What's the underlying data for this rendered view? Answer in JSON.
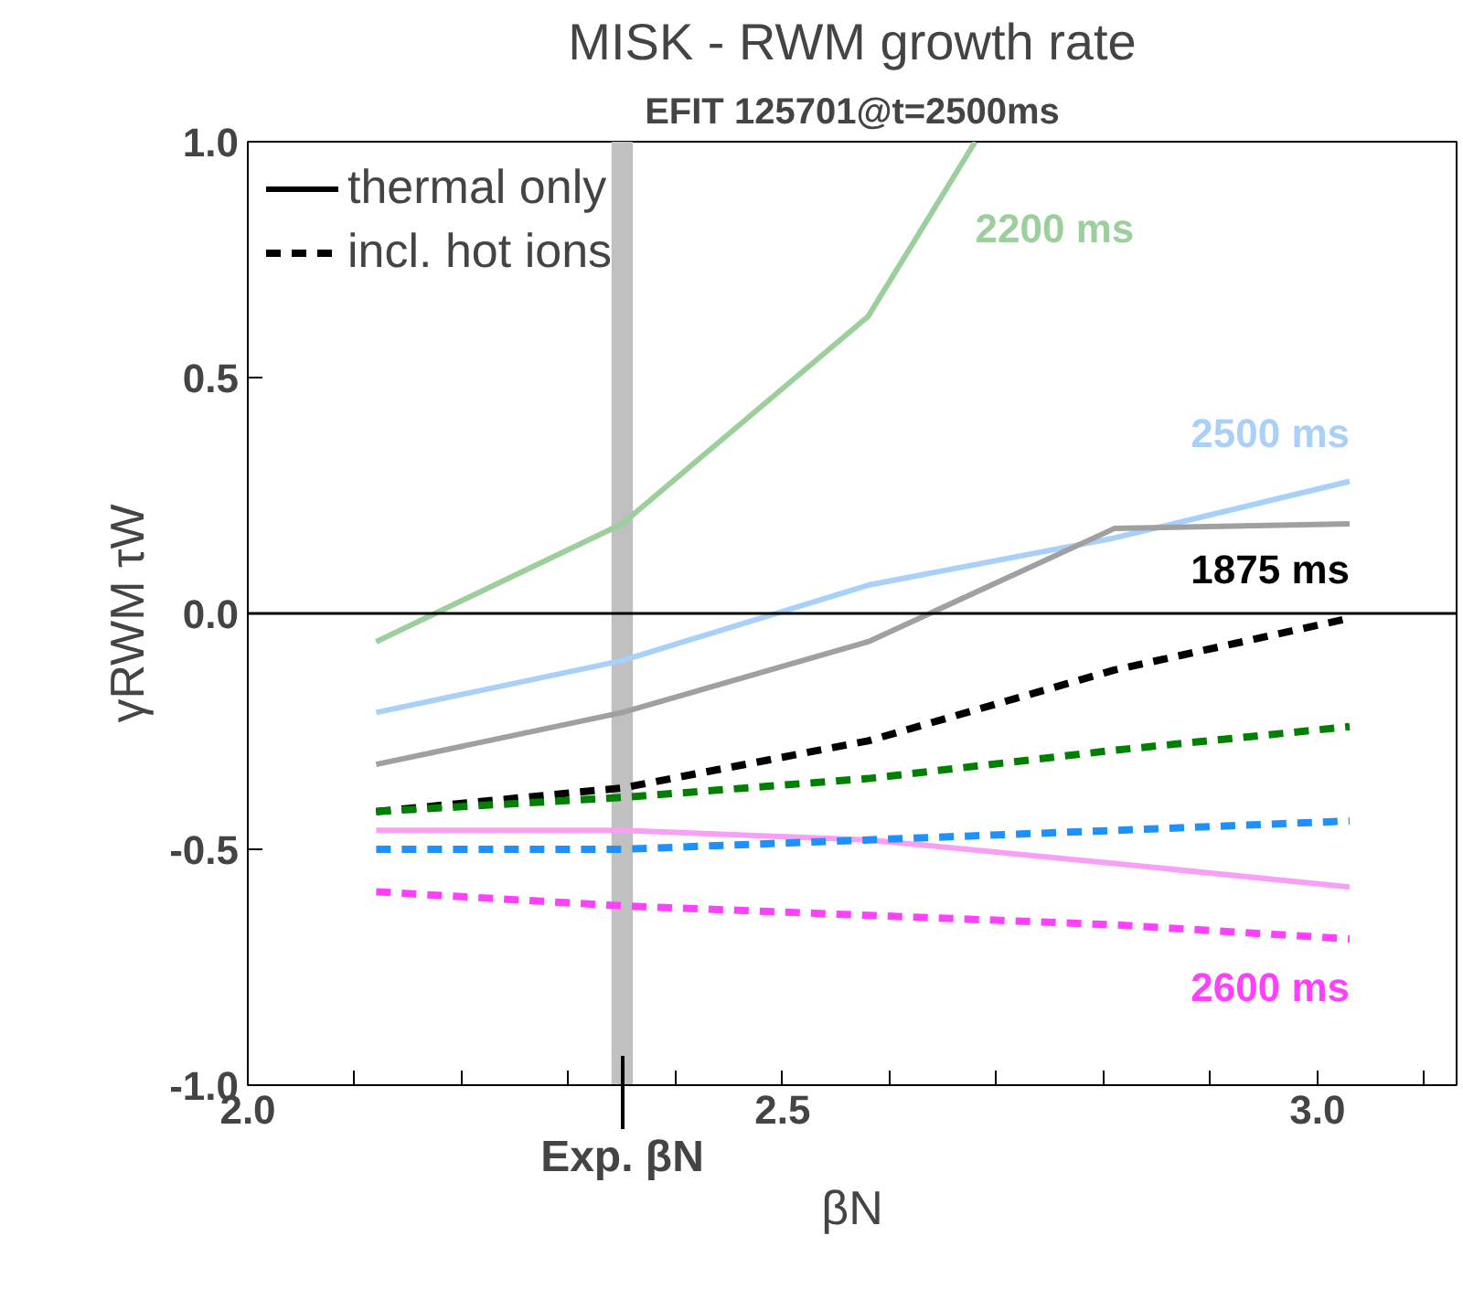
{
  "chart_data": {
    "type": "line",
    "title": "MISK - RWM growth rate",
    "subtitle": "EFIT 125701@t=2500ms",
    "xlabel": "βN",
    "ylabel": "γRWM τW",
    "x": [
      2.12,
      2.35,
      2.58,
      2.81,
      3.03
    ],
    "xlim": [
      2.0,
      3.13
    ],
    "ylim": [
      -1.0,
      1.0
    ],
    "xticks": [
      {
        "value": 2.0,
        "label": "2.0"
      },
      {
        "value": 2.1,
        "label": null
      },
      {
        "value": 2.2,
        "label": null
      },
      {
        "value": 2.3,
        "label": null
      },
      {
        "value": 2.4,
        "label": null
      },
      {
        "value": 2.5,
        "label": "2.5"
      },
      {
        "value": 2.6,
        "label": null
      },
      {
        "value": 2.7,
        "label": null
      },
      {
        "value": 2.8,
        "label": null
      },
      {
        "value": 2.9,
        "label": null
      },
      {
        "value": 3.0,
        "label": "3.0"
      },
      {
        "value": 3.1,
        "label": null
      }
    ],
    "yticks": [
      {
        "value": -1.0,
        "label": "-1.0"
      },
      {
        "value": -0.5,
        "label": "-0.5"
      },
      {
        "value": 0.0,
        "label": "0.0"
      },
      {
        "value": 0.5,
        "label": "0.5"
      },
      {
        "value": 1.0,
        "label": "1.0"
      }
    ],
    "grid": false,
    "legend": "top left",
    "series": [
      {
        "name": "thermal only",
        "color": "#000000",
        "line_style": "solid",
        "values": [
          null,
          null,
          null,
          null,
          null
        ]
      },
      {
        "name": "incl. hot ions",
        "color": "#000000",
        "line_style": "dashed",
        "values": [
          null,
          null,
          null,
          null,
          null
        ]
      },
      {
        "name": "2200 ms",
        "color": "#9ccf9c",
        "line_style": "solid",
        "x": [
          2.12,
          2.35,
          2.58,
          2.68
        ],
        "values": [
          -0.06,
          0.19,
          0.63,
          1.0
        ]
      },
      {
        "name": "2500 ms",
        "color": "#a8d0f8",
        "line_style": "solid",
        "values": [
          -0.21,
          -0.1,
          0.06,
          0.16,
          0.28
        ]
      },
      {
        "color": "#a0a0a0",
        "line_style": "solid",
        "values": [
          -0.32,
          -0.21,
          -0.06,
          0.18,
          0.19
        ]
      },
      {
        "color": "#f8a0f8",
        "line_style": "solid",
        "values": [
          -0.46,
          -0.46,
          -0.48,
          -0.53,
          -0.58
        ]
      },
      {
        "name": "1875 ms",
        "color": "#000000",
        "line_style": "dashed",
        "values": [
          -0.42,
          -0.37,
          -0.27,
          -0.12,
          -0.01
        ]
      },
      {
        "color": "#008000",
        "line_style": "dashed",
        "values": [
          -0.42,
          -0.39,
          -0.35,
          -0.29,
          -0.24
        ]
      },
      {
        "color": "#1e90ff",
        "line_style": "dashed",
        "values": [
          -0.5,
          -0.5,
          -0.48,
          -0.46,
          -0.44
        ]
      },
      {
        "name": "2600 ms",
        "color": "#ff40ff",
        "line_style": "dashed",
        "values": [
          -0.59,
          -0.62,
          -0.64,
          -0.66,
          -0.69
        ]
      }
    ],
    "ref_lines": [
      {
        "axis": "y",
        "value": 0.0,
        "color": "#000000",
        "line_style": "solid"
      }
    ],
    "bands": [
      {
        "axis": "x",
        "from": 2.34,
        "to": 2.36,
        "label": "Exp. βN",
        "color": "#c0c0c0"
      }
    ]
  }
}
